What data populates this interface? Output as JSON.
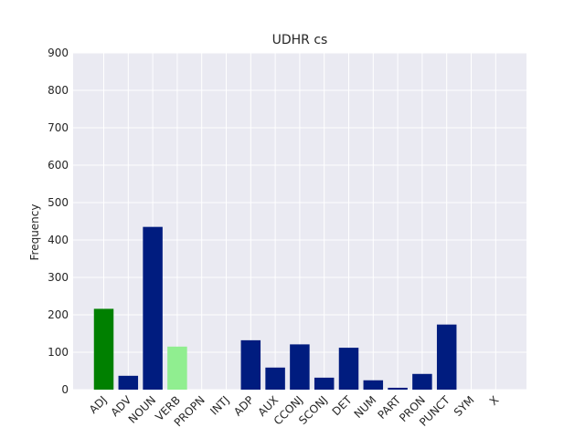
{
  "chart_data": {
    "type": "bar",
    "title": "UDHR cs",
    "xlabel": "",
    "ylabel": "Frequency",
    "ylim": [
      0,
      900
    ],
    "yticks": [
      0,
      100,
      200,
      300,
      400,
      500,
      600,
      700,
      800,
      900
    ],
    "grid": true,
    "categories": [
      "ADJ",
      "ADV",
      "NOUN",
      "VERB",
      "PROPN",
      "INTJ",
      "ADP",
      "AUX",
      "CCONJ",
      "SCONJ",
      "DET",
      "NUM",
      "PART",
      "PRON",
      "PUNCT",
      "SYM",
      "X"
    ],
    "values": [
      216,
      37,
      435,
      115,
      0,
      0,
      132,
      59,
      121,
      32,
      112,
      25,
      5,
      42,
      174,
      0,
      0
    ],
    "colors": [
      "#008000",
      "#001c7f",
      "#001c7f",
      "#90ee90",
      "#001c7f",
      "#001c7f",
      "#001c7f",
      "#001c7f",
      "#001c7f",
      "#001c7f",
      "#001c7f",
      "#001c7f",
      "#001c7f",
      "#001c7f",
      "#001c7f",
      "#001c7f",
      "#001c7f"
    ],
    "background_color": "#eaeaf2",
    "grid_color": "#ffffff"
  }
}
